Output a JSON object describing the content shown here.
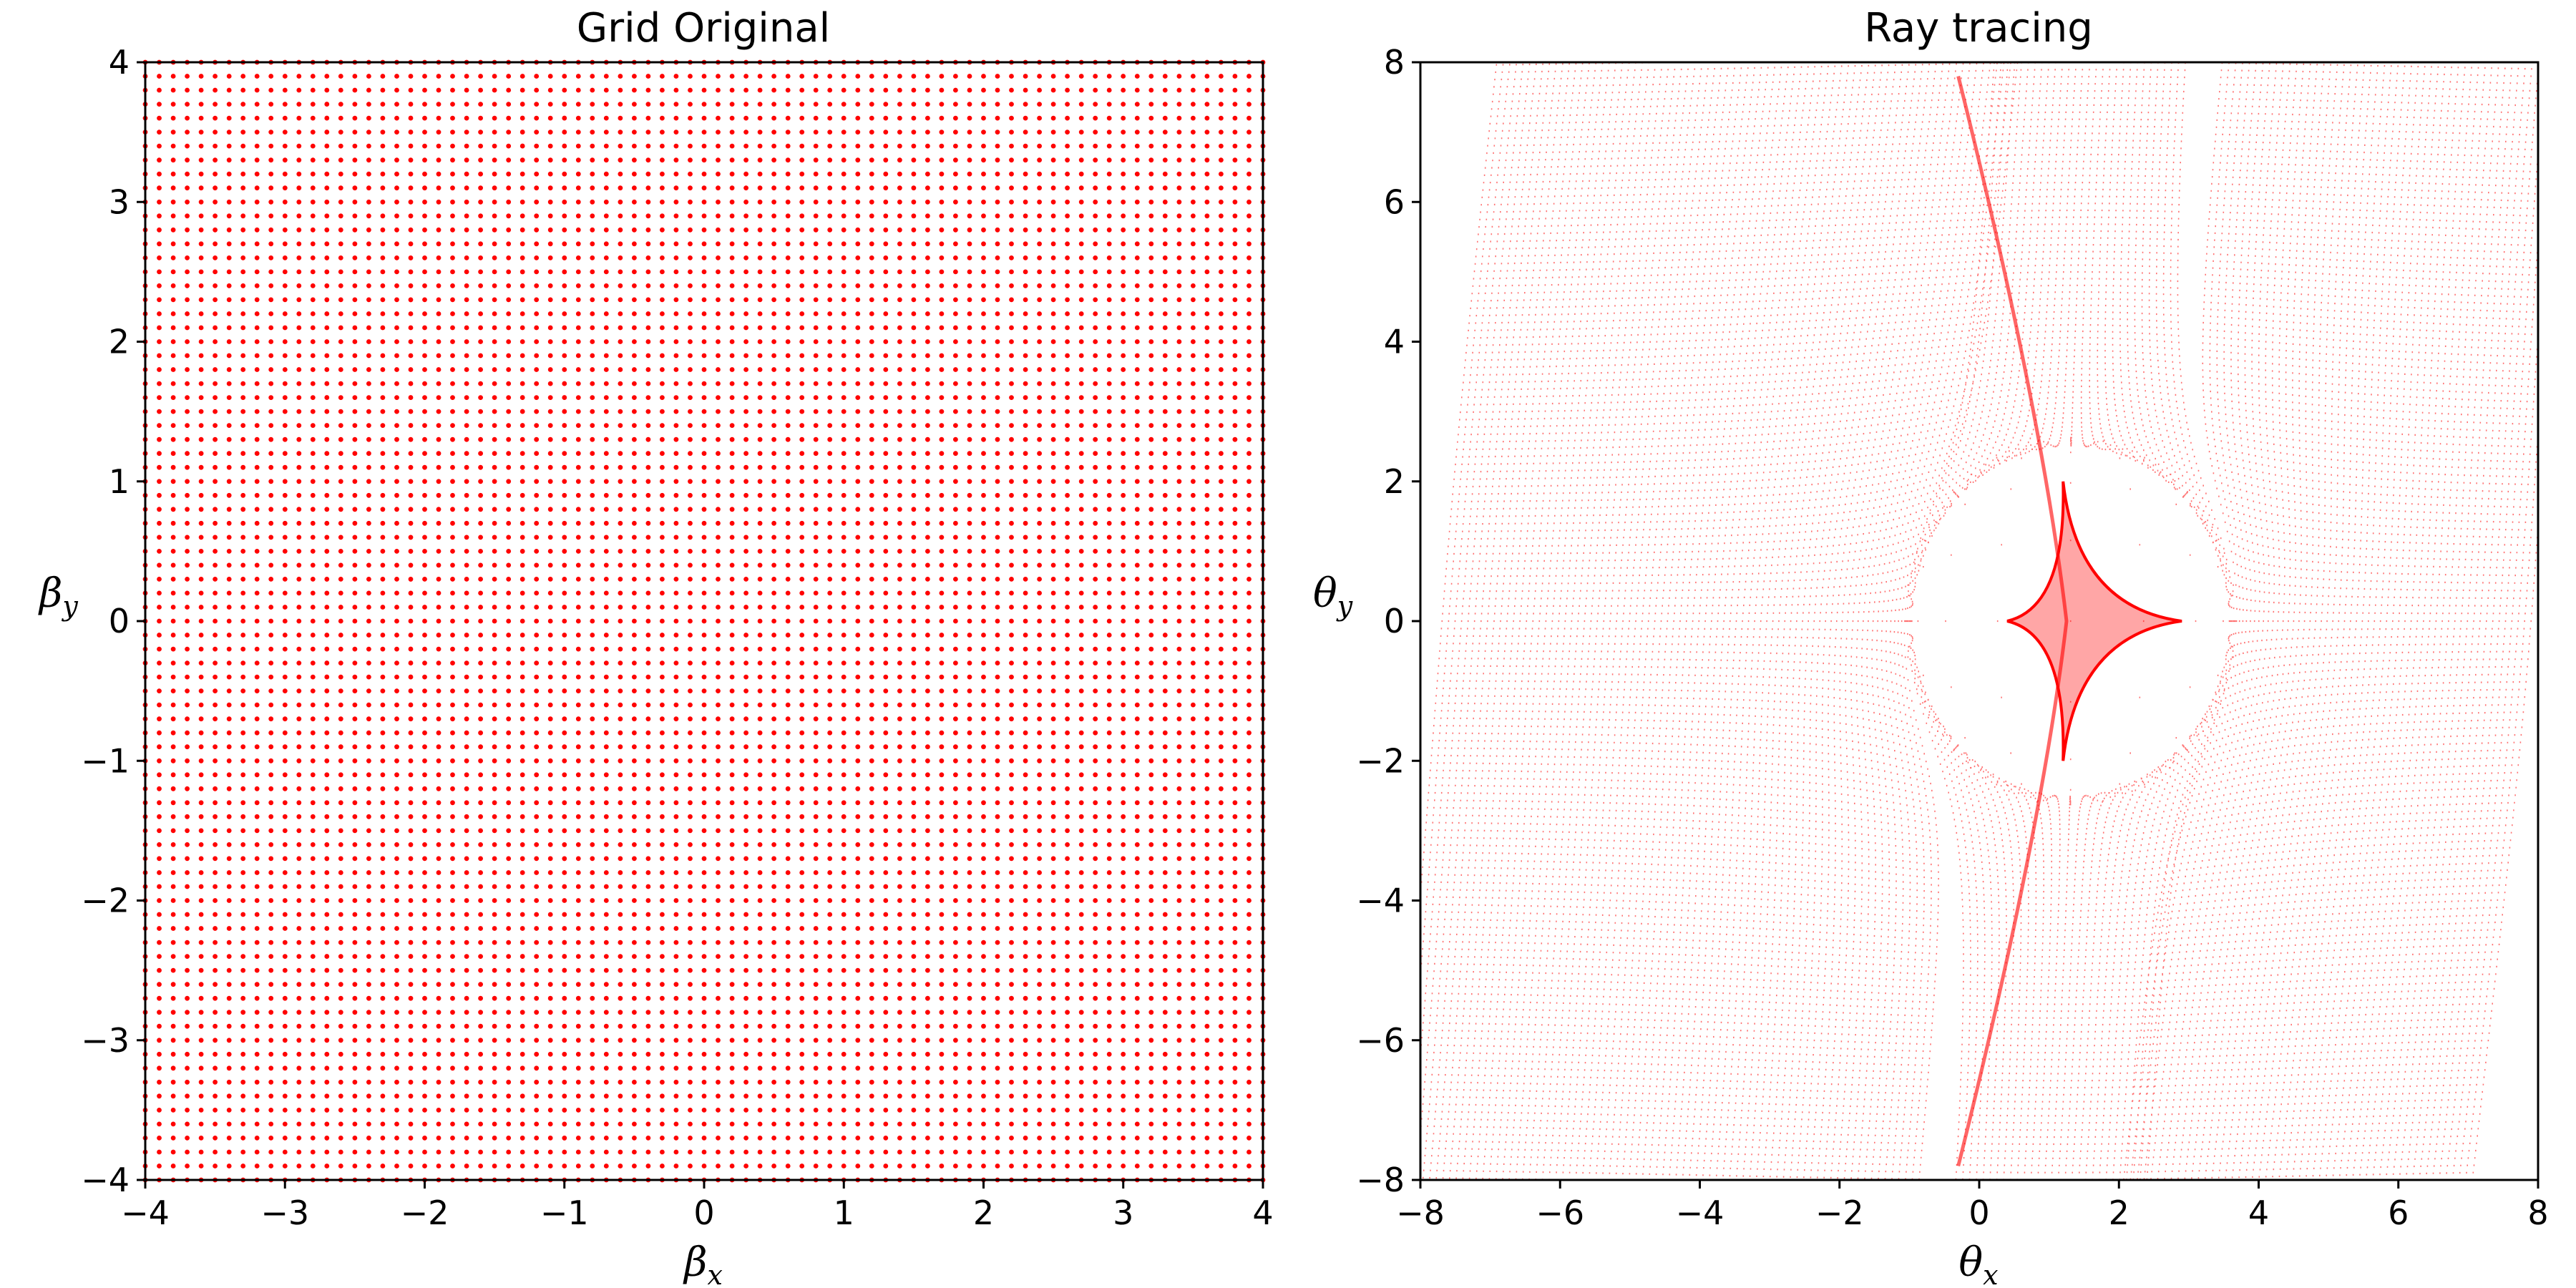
{
  "chart_data": [
    {
      "type": "scatter",
      "title": "Grid Original",
      "xlabel": "β",
      "xlabel_sub": "x",
      "ylabel": "β",
      "ylabel_sub": "y",
      "xlim": [
        -4,
        4
      ],
      "ylim": [
        -4,
        4
      ],
      "xticks": [
        -4,
        -3,
        -2,
        -1,
        0,
        1,
        2,
        3,
        4
      ],
      "yticks": [
        -4,
        -3,
        -2,
        -1,
        0,
        1,
        2,
        3,
        4
      ],
      "xtick_labels": [
        "−4",
        "−3",
        "−2",
        "−1",
        "0",
        "1",
        "2",
        "3",
        "4"
      ],
      "ytick_labels": [
        "−4",
        "−3",
        "−2",
        "−1",
        "0",
        "1",
        "2",
        "3",
        "4"
      ],
      "grid": false,
      "marker_color": "#ff0000",
      "points": {
        "description_of_layout": "uniform square grid",
        "x_range": [
          -4,
          4
        ],
        "y_range": [
          -4,
          4
        ],
        "count_per_axis": 81
      }
    },
    {
      "type": "scatter",
      "title": "Ray tracing",
      "xlabel": "θ",
      "xlabel_sub": "x",
      "ylabel": "θ",
      "ylabel_sub": "y",
      "xlim": [
        -8,
        8
      ],
      "ylim": [
        -8,
        8
      ],
      "xticks": [
        -8,
        -6,
        -4,
        -2,
        0,
        2,
        4,
        6,
        8
      ],
      "yticks": [
        -8,
        -6,
        -4,
        -2,
        0,
        2,
        4,
        6,
        8
      ],
      "xtick_labels": [
        "−8",
        "−6",
        "−4",
        "−2",
        "0",
        "2",
        "4",
        "6",
        "8"
      ],
      "ytick_labels": [
        "−8",
        "−6",
        "−4",
        "−2",
        "0",
        "2",
        "4",
        "6",
        "8"
      ],
      "grid": false,
      "marker_color": "#ff0000",
      "points": {
        "source_grid_range": [
          -8,
          8
        ],
        "source_count_per_axis": 161,
        "lens_center": [
          1.3,
          0
        ],
        "features": "diamond-shaped caustic near (1.3, 0) with cusps at about (0.4, 0), (2.9, 0), (1.2, 2) and (1.2, -2); dense streaks extending to (-0.3, 8) and (-0.3, -8)"
      }
    }
  ]
}
